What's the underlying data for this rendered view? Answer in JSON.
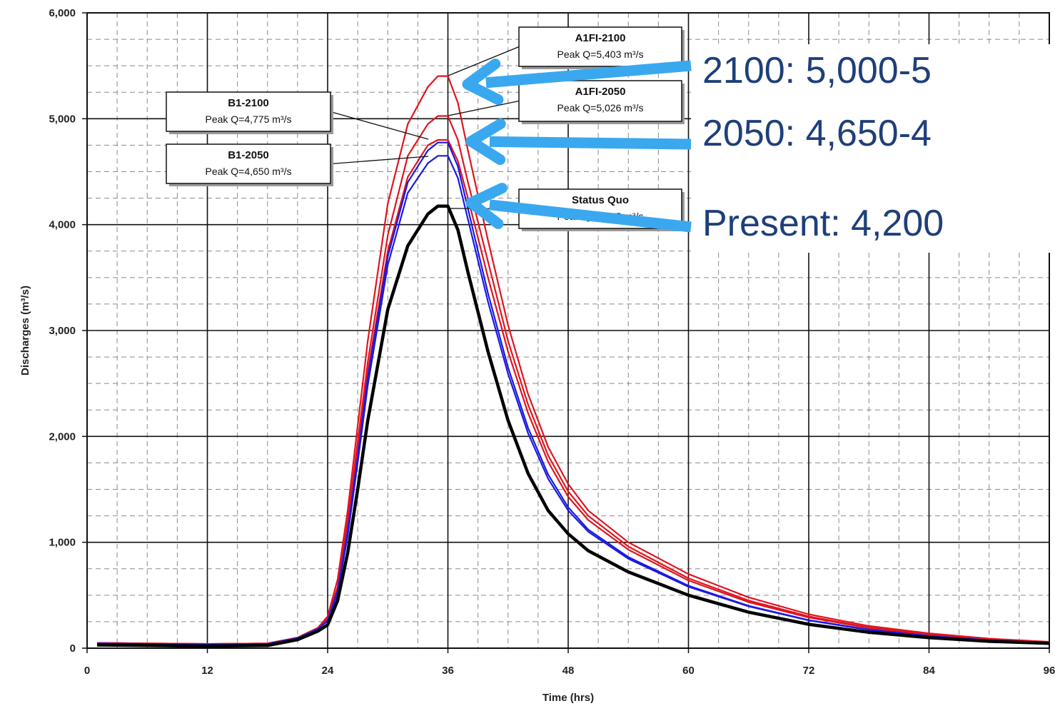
{
  "chart_data": {
    "type": "line",
    "title": "",
    "xlabel": "Time (hrs)",
    "ylabel": "Discharges (m³/s)",
    "xlim": [
      0,
      96
    ],
    "ylim": [
      0,
      6000
    ],
    "x_ticks": [
      0,
      12,
      24,
      36,
      48,
      60,
      72,
      84,
      96
    ],
    "x_tick_labels": [
      "0",
      "12",
      "24",
      "36",
      "48",
      "60",
      "72",
      "84",
      "96"
    ],
    "y_ticks": [
      0,
      1000,
      2000,
      3000,
      4000,
      5000,
      6000
    ],
    "y_tick_labels": [
      "0",
      "1,000",
      "2,000",
      "3,000",
      "4,000",
      "5,000",
      "6,000"
    ],
    "grid": true,
    "x": [
      1,
      6,
      12,
      18,
      21,
      23,
      24,
      25,
      26,
      27,
      28,
      30,
      32,
      34,
      35,
      36,
      37,
      38,
      40,
      42,
      44,
      46,
      48,
      50,
      54,
      60,
      66,
      72,
      78,
      84,
      90,
      96
    ],
    "series": [
      {
        "color": "#e0141e",
        "values": [
          50,
          45,
          40,
          45,
          100,
          190,
          300,
          650,
          1300,
          2100,
          2900,
          4200,
          4950,
          5300,
          5403,
          5403,
          5150,
          4700,
          3850,
          3050,
          2400,
          1900,
          1550,
          1300,
          1000,
          700,
          480,
          320,
          210,
          140,
          90,
          60
        ]
      },
      {
        "color": "#e0141e",
        "values": [
          50,
          45,
          40,
          45,
          100,
          190,
          280,
          580,
          1200,
          1950,
          2700,
          3900,
          4650,
          4950,
          5026,
          5026,
          4800,
          4400,
          3650,
          2900,
          2300,
          1820,
          1480,
          1250,
          960,
          660,
          450,
          300,
          195,
          130,
          85,
          55
        ]
      },
      {
        "color": "#e0141e",
        "values": [
          50,
          45,
          40,
          45,
          100,
          190,
          270,
          560,
          1150,
          1850,
          2600,
          3750,
          4450,
          4750,
          4800,
          4800,
          4600,
          4250,
          3500,
          2800,
          2220,
          1760,
          1430,
          1210,
          930,
          640,
          435,
          290,
          190,
          125,
          82,
          55
        ]
      },
      {
        "color": "#1a1ae0",
        "values": [
          45,
          40,
          35,
          40,
          95,
          180,
          260,
          540,
          1100,
          1800,
          2550,
          3700,
          4400,
          4700,
          4775,
          4775,
          4550,
          4150,
          3350,
          2650,
          2080,
          1640,
          1330,
          1120,
          860,
          590,
          400,
          265,
          175,
          115,
          75,
          50
        ]
      },
      {
        "color": "#1a1ae0",
        "values": [
          45,
          40,
          35,
          40,
          95,
          180,
          255,
          520,
          1060,
          1750,
          2480,
          3620,
          4300,
          4580,
          4650,
          4650,
          4440,
          4050,
          3270,
          2590,
          2030,
          1600,
          1300,
          1100,
          845,
          580,
          395,
          262,
          172,
          113,
          74,
          50
        ]
      },
      {
        "color": "#000000",
        "values": [
          30,
          25,
          20,
          25,
          80,
          160,
          220,
          450,
          900,
          1500,
          2150,
          3200,
          3800,
          4100,
          4175,
          4175,
          3950,
          3550,
          2800,
          2150,
          1650,
          1300,
          1080,
          920,
          720,
          500,
          340,
          225,
          150,
          100,
          65,
          45
        ]
      }
    ],
    "annotations": [
      {
        "title": "A1FI-2100",
        "text": "Peak Q=5,403 m³/s"
      },
      {
        "title": "A1FI-2050",
        "text": "Peak Q=5,026 m³/s"
      },
      {
        "title": "B1-2100",
        "text": "Peak Q=4,775 m³/s"
      },
      {
        "title": "B1-2050",
        "text": "Peak Q=4,650 m³/s"
      },
      {
        "title": "Status Quo",
        "text": "Peak Q=4,175 m³/s"
      }
    ],
    "overlay_text": [
      "2100:   5,000-5",
      "2050:   4,650-4",
      "Present:  4,200"
    ]
  }
}
